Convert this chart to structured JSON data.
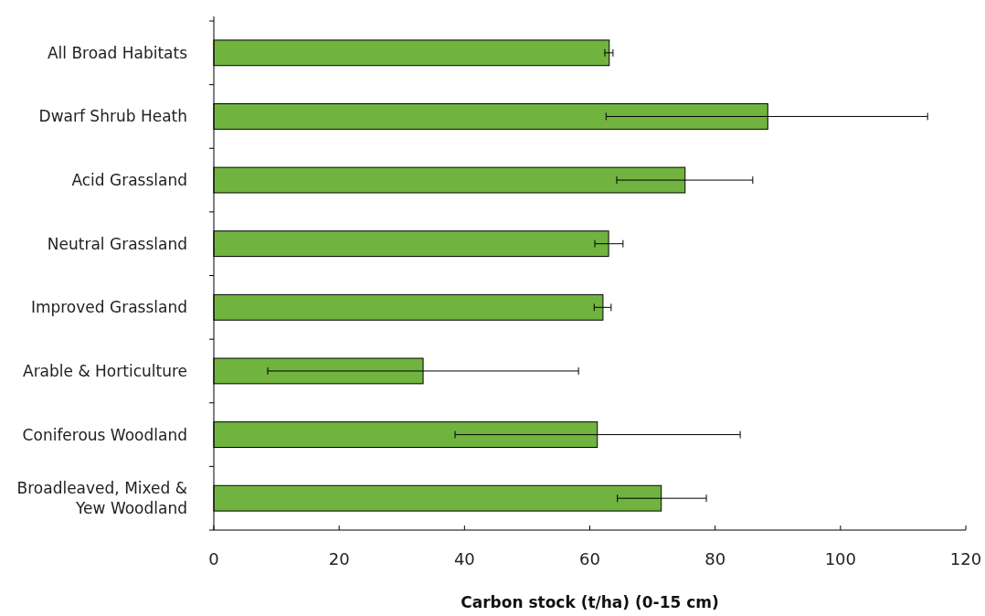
{
  "chart_data": {
    "type": "bar",
    "orientation": "horizontal",
    "xlabel": "Carbon stock (t/ha) (0-15 cm)",
    "categories": [
      "All Broad Habitats",
      "Dwarf Shrub Heath",
      "Acid Grassland",
      "Neutral Grassland",
      "Improved Grassland",
      "Arable & Horticulture",
      "Coniferous Woodland",
      "Broadleaved, Mixed & Yew Woodland"
    ],
    "values": [
      63.1,
      88.4,
      75.2,
      63.0,
      62.1,
      33.4,
      61.2,
      71.4
    ],
    "errors": [
      [
        62.4,
        63.7
      ],
      [
        62.6,
        113.9
      ],
      [
        64.3,
        86.0
      ],
      [
        60.8,
        65.3
      ],
      [
        60.7,
        63.4
      ],
      [
        8.6,
        58.2
      ],
      [
        38.5,
        84.0
      ],
      [
        64.4,
        78.6
      ]
    ],
    "color": "#70b43f",
    "xlim": [
      0,
      120
    ],
    "xticks": [
      0,
      20,
      40,
      60,
      80,
      100,
      120
    ],
    "grid": false
  }
}
